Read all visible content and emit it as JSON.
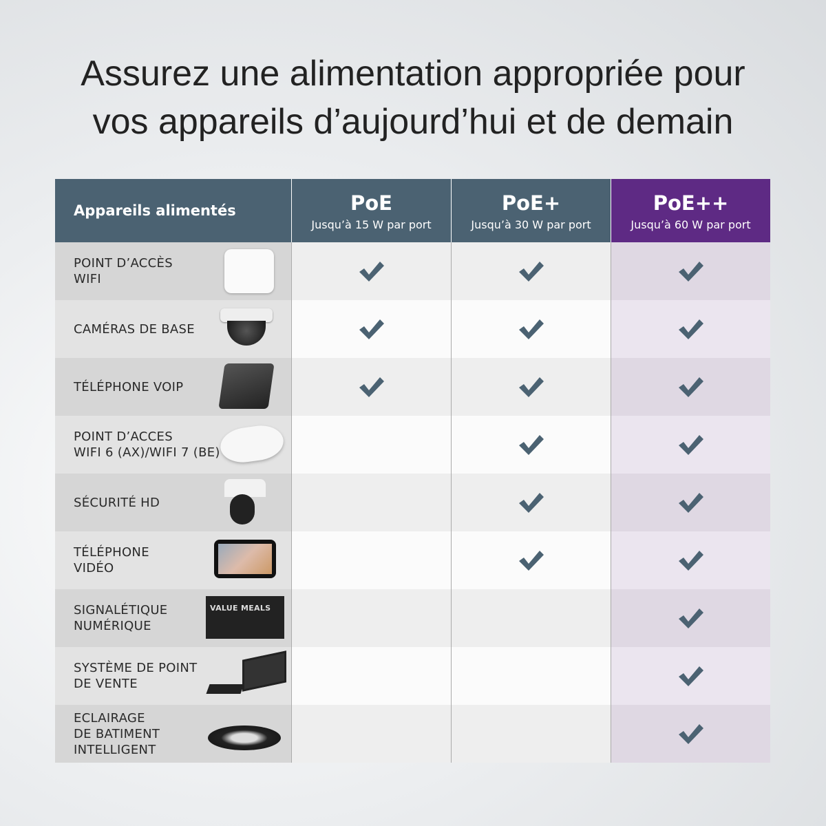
{
  "title": {
    "line1": "Assurez une alimentation appropriée pour",
    "line2": "vos appareils d’aujourd’hui et de demain"
  },
  "colors": {
    "header": "#4b6272",
    "accent_purple": "#5e2a84",
    "check": "#4b6272"
  },
  "header": {
    "devices_label": "Appareils alimentés",
    "columns": [
      {
        "name": "PoE",
        "sub": "Jusqu’à 15 W par port"
      },
      {
        "name": "PoE+",
        "sub": "Jusqu’à 30 W par port"
      },
      {
        "name": "PoE++",
        "sub": "Jusqu’à 60 W par port"
      }
    ]
  },
  "rows": [
    {
      "label": "POINT D’ACCÈS\nWIFI",
      "icon": "wifi-access-point-icon",
      "support": [
        true,
        true,
        true
      ]
    },
    {
      "label": "CAMÉRAS DE BASE",
      "icon": "dome-camera-icon",
      "support": [
        true,
        true,
        true
      ]
    },
    {
      "label": "TÉLÉPHONE VOIP",
      "icon": "voip-phone-icon",
      "support": [
        true,
        true,
        true
      ]
    },
    {
      "label": "POINT D’ACCES\nWIFI 6 (AX)/WIFI 7 (BE)",
      "icon": "wifi6-access-point-icon",
      "support": [
        false,
        true,
        true
      ]
    },
    {
      "label": "SÉCURITÉ HD",
      "icon": "turret-camera-icon",
      "support": [
        false,
        true,
        true
      ]
    },
    {
      "label": "TÉLÉPHONE\nVIDÉO",
      "icon": "video-phone-icon",
      "support": [
        false,
        true,
        true
      ]
    },
    {
      "label": "SIGNALÉTIQUE\nNUMÉRIQUE",
      "icon": "digital-signage-icon",
      "signage_text": "VALUE MEALS",
      "support": [
        false,
        false,
        true
      ]
    },
    {
      "label": "SYSTÈME DE POINT\nDE VENTE",
      "icon": "pos-terminal-icon",
      "support": [
        false,
        false,
        true
      ]
    },
    {
      "label": "ECLAIRAGE\nDE BATIMENT\nINTELLIGENT",
      "icon": "highbay-light-icon",
      "support": [
        false,
        false,
        true
      ]
    }
  ]
}
